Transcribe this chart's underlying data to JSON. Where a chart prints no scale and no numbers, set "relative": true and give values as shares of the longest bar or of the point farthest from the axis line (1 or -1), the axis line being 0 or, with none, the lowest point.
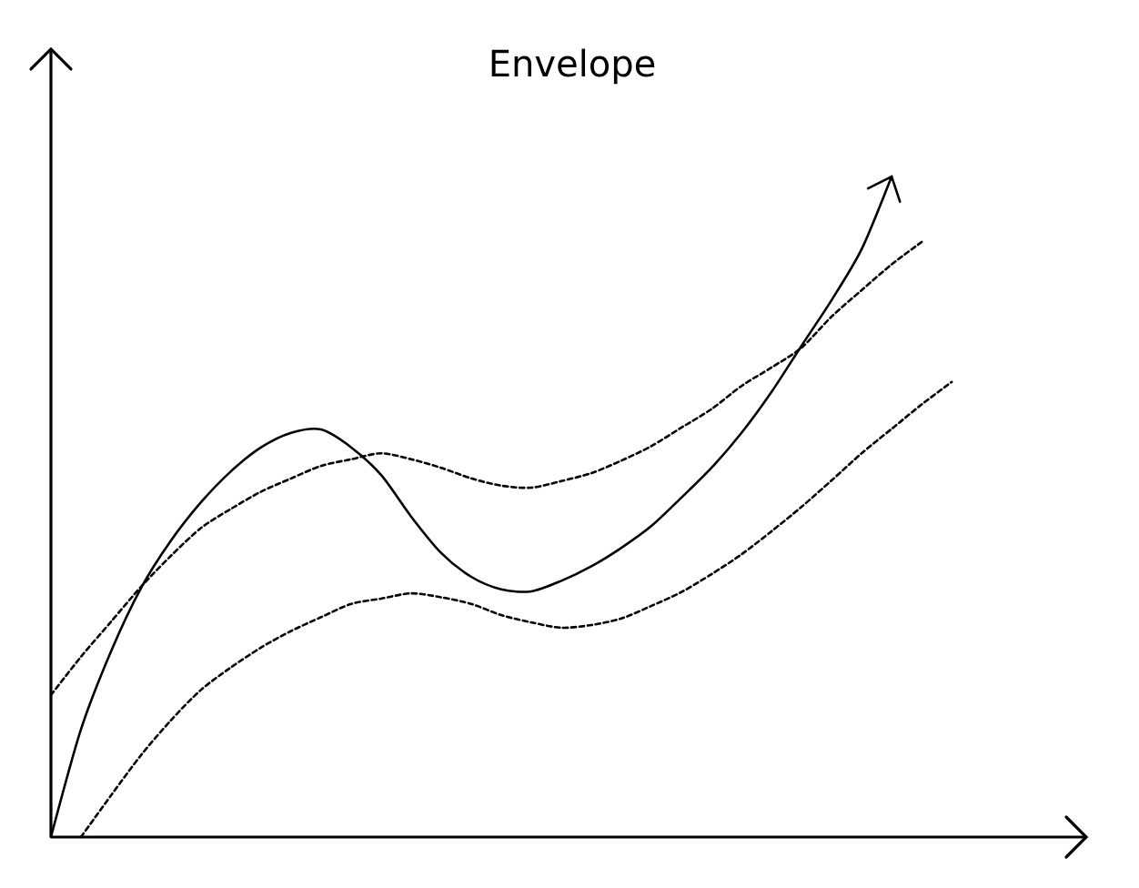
{
  "chart_data": {
    "type": "line",
    "title": "Envelope",
    "relative": true,
    "categories": [
      null,
      null,
      null,
      null,
      null,
      null,
      null,
      null,
      null,
      null,
      null,
      null,
      null,
      null,
      null,
      null,
      null,
      null,
      null,
      null,
      null,
      null,
      null,
      null,
      null,
      null,
      null,
      null,
      null,
      null,
      null
    ],
    "series": [
      {
        "color": "#000000",
        "line_style": "solid",
        "values": [
          0,
          0.163,
          0.281,
          0.377,
          0.449,
          0.507,
          0.554,
          0.59,
          0.612,
          0.617,
          0.59,
          0.548,
          0.485,
          0.43,
          0.394,
          0.375,
          0.372,
          0.388,
          0.41,
          0.438,
          0.471,
          0.514,
          0.559,
          0.612,
          0.674,
          0.744,
          0.813,
          0.89,
          1,
          null,
          null
        ]
      },
      {
        "color": "#000000",
        "line_style": "dotted",
        "values": [
          0.215,
          0.273,
          0.326,
          0.379,
          0.426,
          0.468,
          0.497,
          0.523,
          0.543,
          0.562,
          0.572,
          0.581,
          0.572,
          0.559,
          0.543,
          0.532,
          0.529,
          0.539,
          0.551,
          0.57,
          0.592,
          0.62,
          0.648,
          0.683,
          0.711,
          0.741,
          0.788,
          0.828,
          0.867,
          0.901,
          null
        ]
      },
      {
        "color": "#000000",
        "line_style": "dotted",
        "values": [
          null,
          0,
          0.063,
          0.124,
          0.177,
          0.223,
          0.257,
          0.287,
          0.312,
          0.333,
          0.353,
          0.361,
          0.369,
          0.363,
          0.353,
          0.336,
          0.325,
          0.317,
          0.321,
          0.331,
          0.35,
          0.371,
          0.398,
          0.428,
          0.463,
          0.5,
          0.54,
          0.581,
          0.618,
          0.655,
          0.689
        ]
      }
    ]
  }
}
